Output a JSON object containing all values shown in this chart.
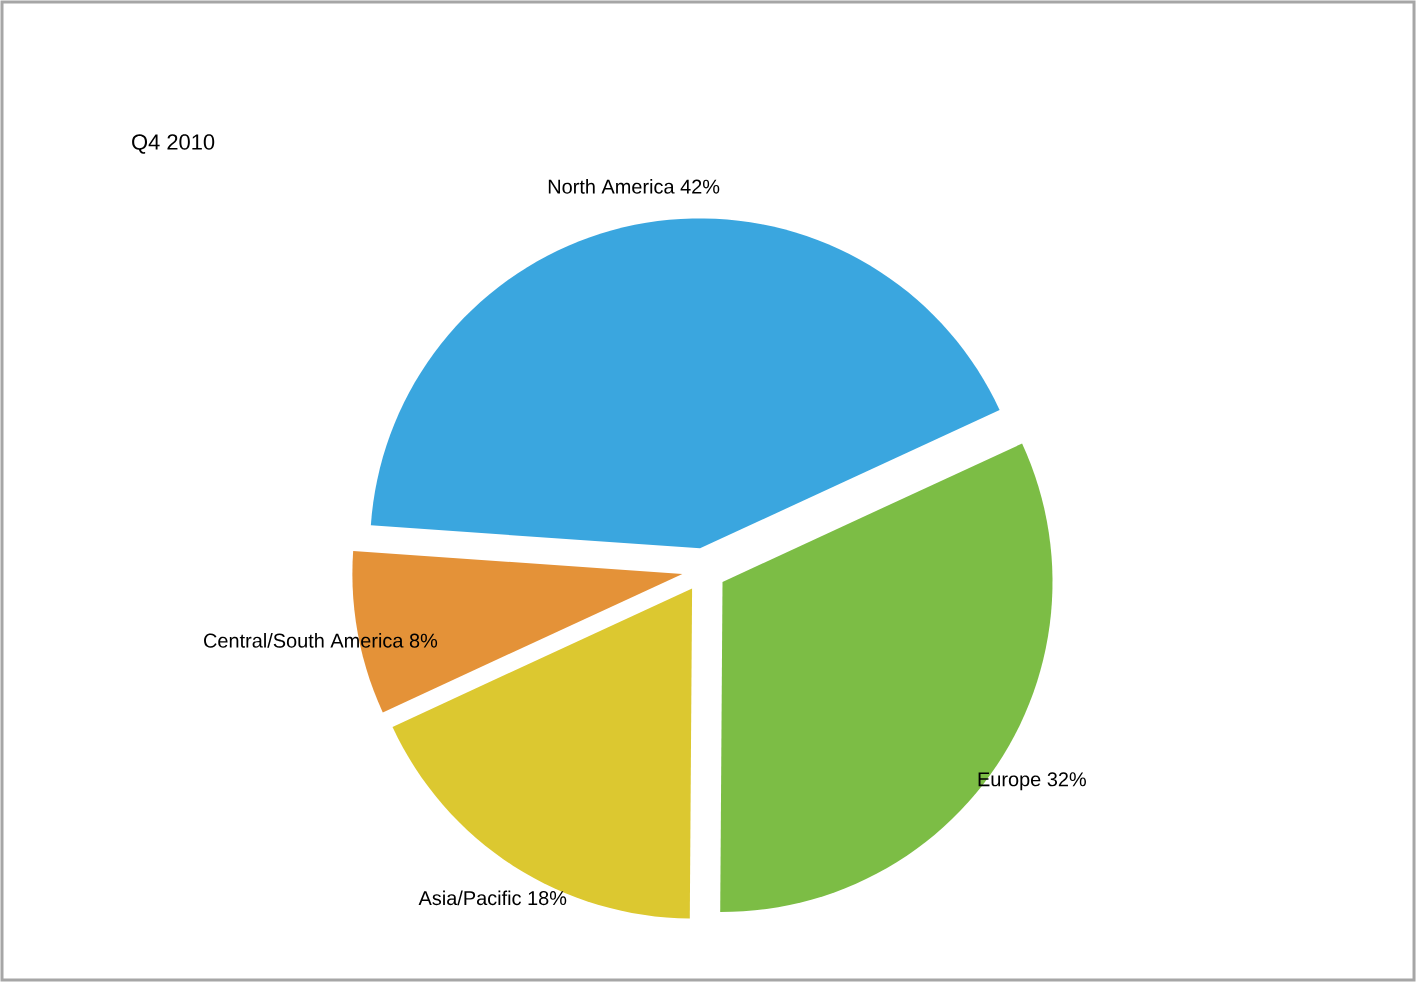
{
  "chart_data": {
    "type": "pie",
    "title": "Q4 2010",
    "categories": [
      "North America",
      "Europe",
      "Asia/Pacific",
      "Central/South America"
    ],
    "values": [
      42,
      32,
      18,
      8
    ],
    "value_labels": [
      "42%",
      "32%",
      "18%",
      "8%"
    ],
    "colors": [
      "#3aa6df",
      "#7cbd45",
      "#dcc830",
      "#e49238"
    ]
  }
}
